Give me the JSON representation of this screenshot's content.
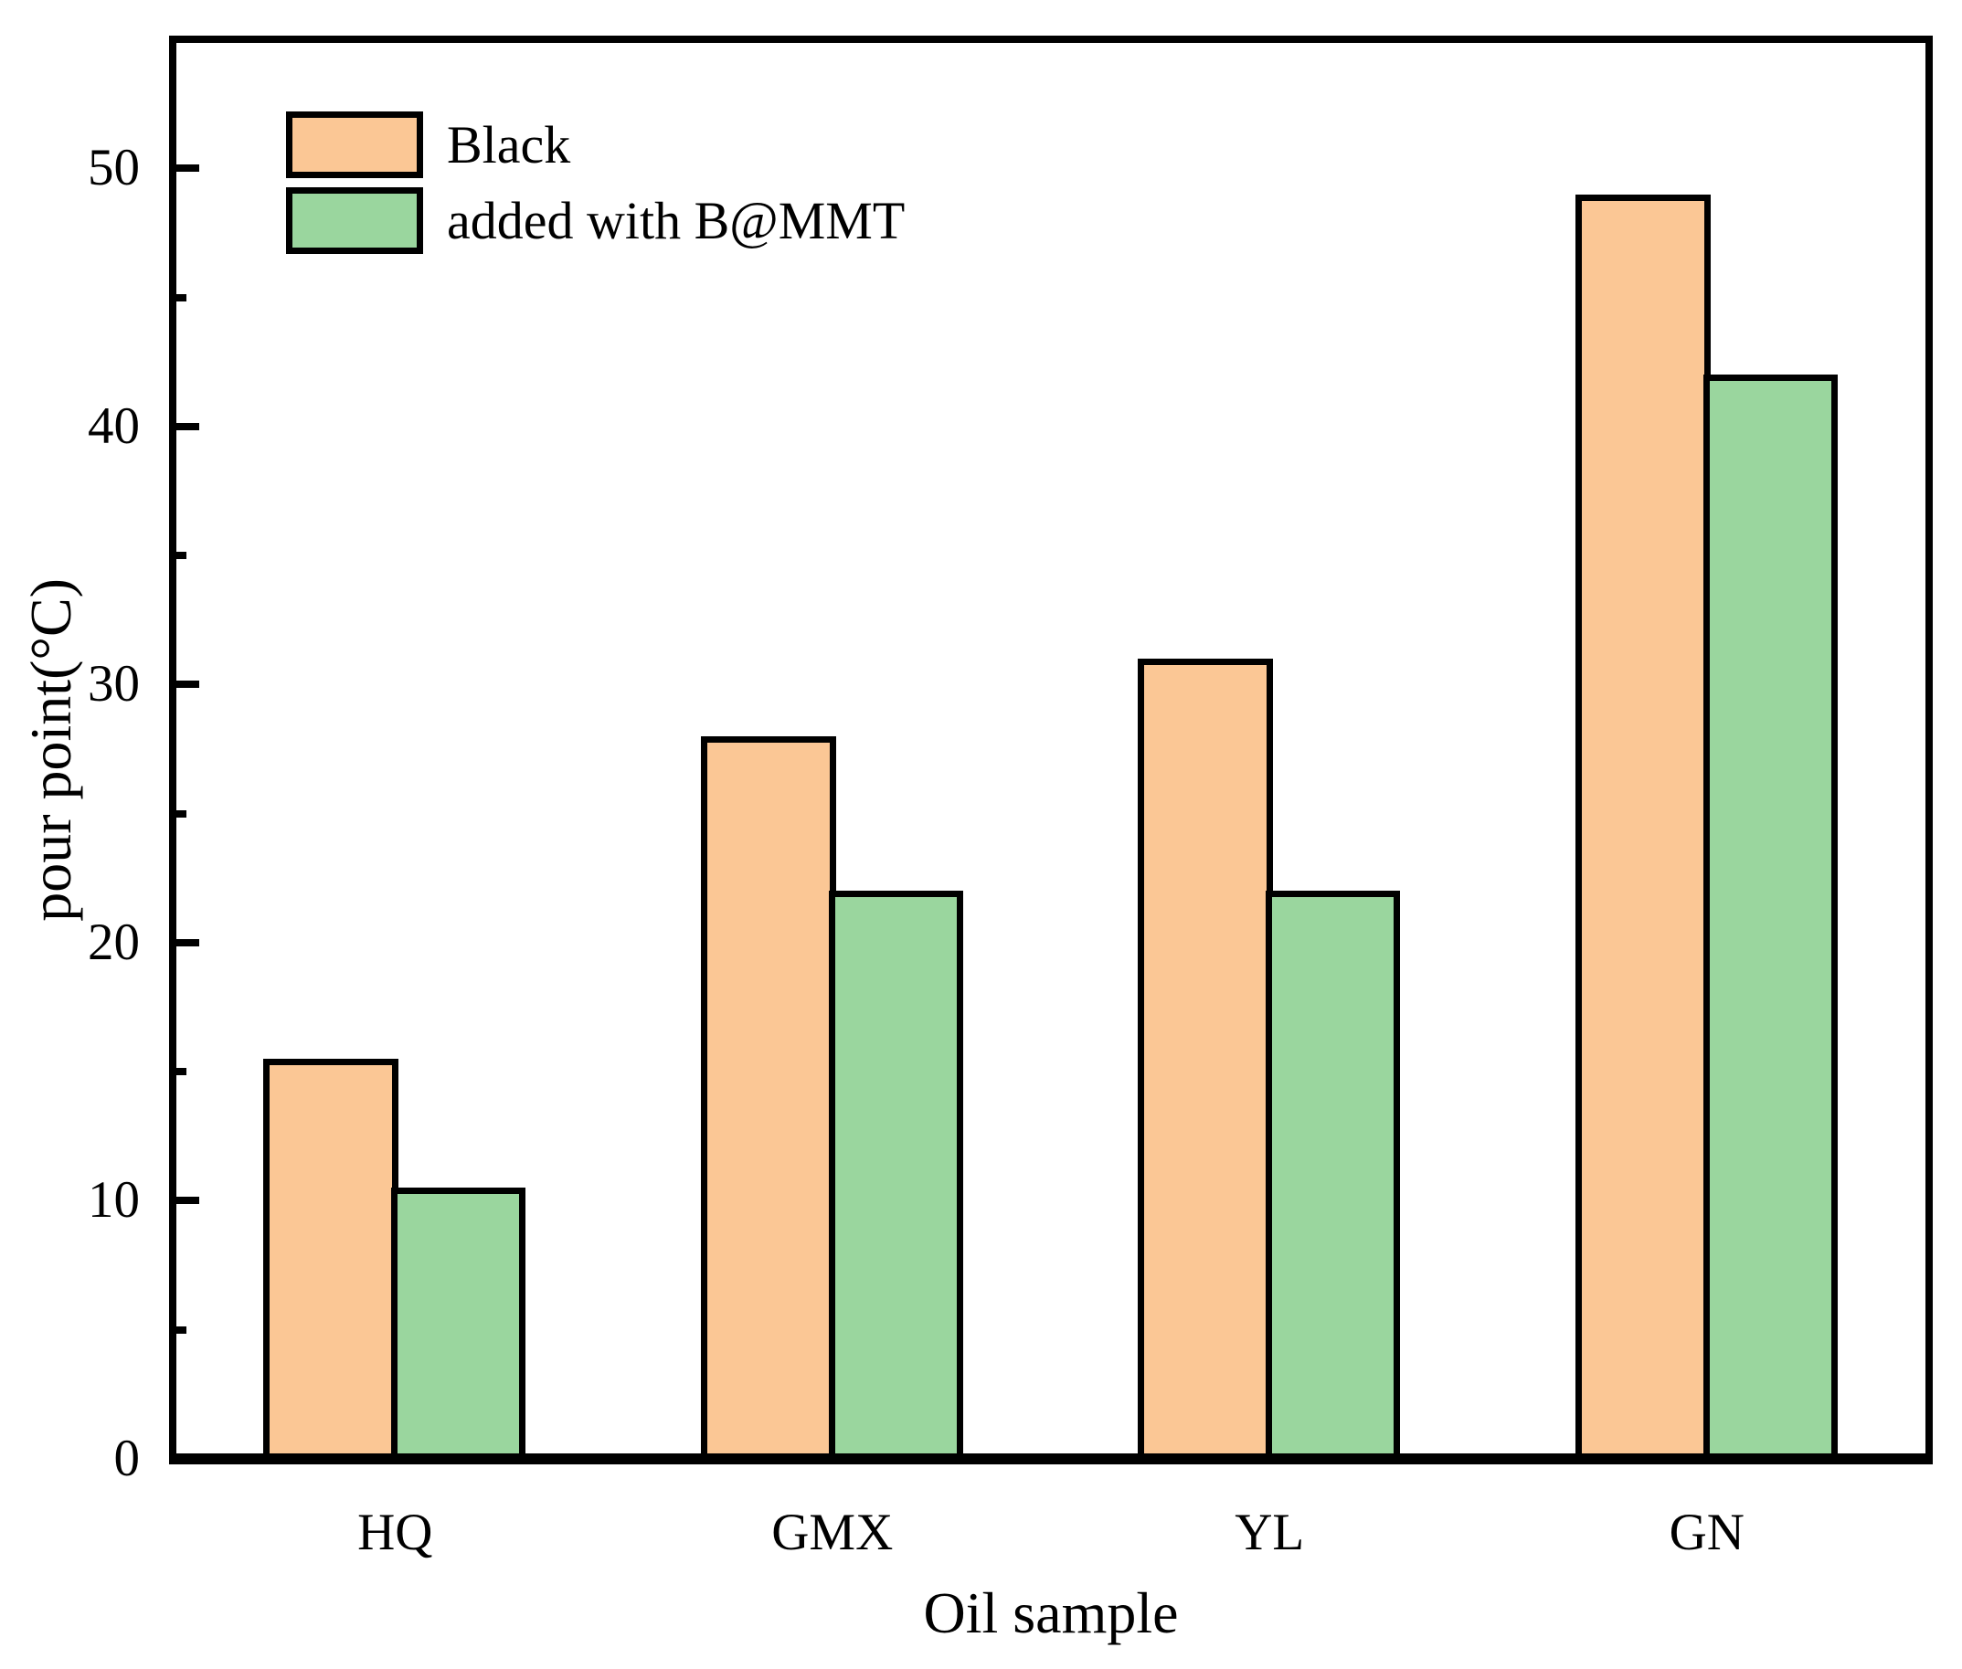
{
  "chart_data": {
    "type": "bar",
    "title": "",
    "categories": [
      "HQ",
      "GMX",
      "YL",
      "GN"
    ],
    "series": [
      {
        "name": "Black",
        "color": "#FBC795",
        "values": [
          15.5,
          28,
          31,
          49
        ]
      },
      {
        "name": "added with B@MMT",
        "color": "#9AD69E",
        "values": [
          10.5,
          22,
          22,
          42
        ]
      }
    ],
    "xlabel": "Oil sample",
    "ylabel": "pour point(°C)",
    "ylim": [
      0,
      55
    ],
    "yticks_major": [
      0,
      10,
      20,
      30,
      40,
      50
    ],
    "yticks_minor": [
      5,
      15,
      25,
      35,
      45
    ],
    "grid": false,
    "legend_position": "top-left",
    "bar_edge_color": "#000000",
    "axis_color": "#000000",
    "background_color": "#FFFFFF",
    "tick_direction": "in"
  }
}
